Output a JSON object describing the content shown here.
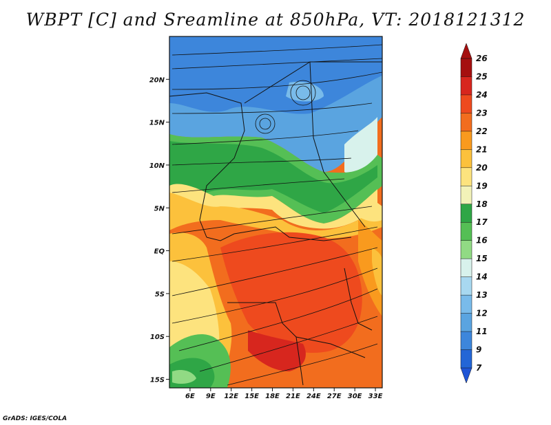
{
  "title": "WBPT [C] and Sreamline at 850hPa, VT: 2018121312",
  "credit": "GrADS: IGES/COLA",
  "map": {
    "lon_range": [
      3,
      34
    ],
    "lat_range": [
      -16,
      25
    ],
    "lat_ticks": [
      {
        "lat": 20,
        "label": "20N"
      },
      {
        "lat": 15,
        "label": "15N"
      },
      {
        "lat": 10,
        "label": "10N"
      },
      {
        "lat": 5,
        "label": "5N"
      },
      {
        "lat": 0,
        "label": "EQ"
      },
      {
        "lat": -5,
        "label": "5S"
      },
      {
        "lat": -10,
        "label": "10S"
      },
      {
        "lat": -15,
        "label": "15S"
      }
    ],
    "lon_ticks": [
      {
        "lon": 6,
        "label": "6E"
      },
      {
        "lon": 9,
        "label": "9E"
      },
      {
        "lon": 12,
        "label": "12E"
      },
      {
        "lon": 15,
        "label": "15E"
      },
      {
        "lon": 18,
        "label": "18E"
      },
      {
        "lon": 21,
        "label": "21E"
      },
      {
        "lon": 24,
        "label": "24E"
      },
      {
        "lon": 27,
        "label": "27E"
      },
      {
        "lon": 30,
        "label": "30E"
      },
      {
        "lon": 33,
        "label": "33E"
      }
    ]
  },
  "colorbar": {
    "labels": [
      "26",
      "25",
      "24",
      "23",
      "22",
      "21",
      "20",
      "19",
      "18",
      "17",
      "16",
      "15",
      "14",
      "13",
      "12",
      "11",
      "9",
      "7"
    ],
    "colors": [
      "#a50f0f",
      "#d7261e",
      "#ee4a1e",
      "#f26d1e",
      "#f99a1e",
      "#fcc13c",
      "#fde37e",
      "#f2f2b8",
      "#2fa646",
      "#55bf55",
      "#91da84",
      "#d8f2ec",
      "#a8d8f0",
      "#79bbea",
      "#5aa4e0",
      "#3d86db",
      "#2366d6"
    ]
  }
}
